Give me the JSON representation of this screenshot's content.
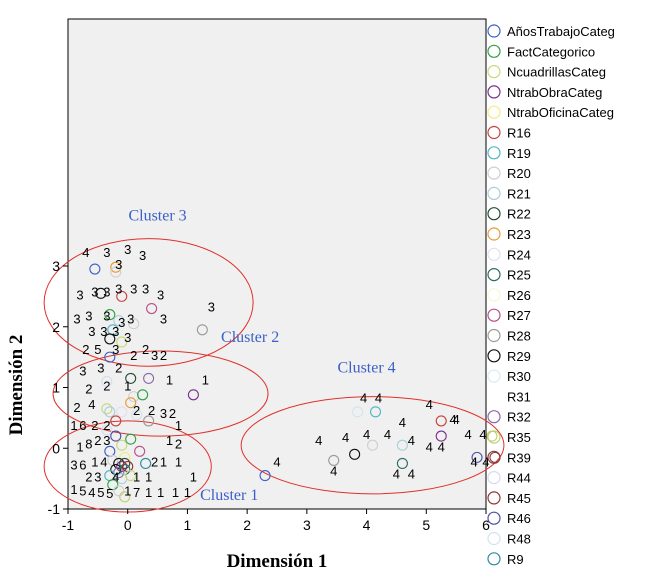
{
  "chart_data": {
    "type": "scatter",
    "xlabel": "Dimensión 1",
    "ylabel": "Dimensión 2",
    "xlim": [
      -1,
      6
    ],
    "ylim": [
      -1,
      3.5
    ],
    "xticks": [
      "-1",
      "0",
      "1",
      "2",
      "3",
      "4",
      "5",
      "6"
    ],
    "yticks": [
      "-1",
      "0",
      "1",
      "2",
      "3"
    ],
    "grid": false,
    "legend_position": "right",
    "legend": [
      {
        "name": "AñosTrabajoCateg",
        "color": "#3b5fc8"
      },
      {
        "name": "FactCategorico",
        "color": "#2ea043"
      },
      {
        "name": "NcuadrillasCateg",
        "color": "#c9d87a"
      },
      {
        "name": "NtrabObraCateg",
        "color": "#7b2f8e"
      },
      {
        "name": "NtrabOficinaCateg",
        "color": "#f1ec7e"
      },
      {
        "name": "R16",
        "color": "#c8413c"
      },
      {
        "name": "R19",
        "color": "#4bb6c4"
      },
      {
        "name": "R20",
        "color": "#cfcfcf"
      },
      {
        "name": "R21",
        "color": "#a9cfd8"
      },
      {
        "name": "R22",
        "color": "#1f4e34"
      },
      {
        "name": "R23",
        "color": "#e69a35"
      },
      {
        "name": "R24",
        "color": "#e3ddf0"
      },
      {
        "name": "R25",
        "color": "#2d6b66"
      },
      {
        "name": "R26",
        "color": "#f3f9d5"
      },
      {
        "name": "R27",
        "color": "#b8508a"
      },
      {
        "name": "R28",
        "color": "#9a9a9a"
      },
      {
        "name": "R29",
        "color": "#111111"
      },
      {
        "name": "R30",
        "color": "#d7ecf0"
      },
      {
        "name": "R31",
        "color": "#ffffff"
      },
      {
        "name": "R32",
        "color": "#8a68a8"
      },
      {
        "name": "R35",
        "color": "#bfcf6a"
      },
      {
        "name": "R39",
        "color": "#8c3a3a"
      },
      {
        "name": "R44",
        "color": "#d2dcef"
      },
      {
        "name": "R45",
        "color": "#983333"
      },
      {
        "name": "R46",
        "color": "#4e4fa8"
      },
      {
        "name": "R48",
        "color": "#d0e4ee"
      },
      {
        "name": "R9",
        "color": "#2e8aa2"
      }
    ],
    "annotations": [
      {
        "text": "Cluster 1",
        "x": 1.7,
        "y": -0.85
      },
      {
        "text": "Cluster 2",
        "x": 2.05,
        "y": 1.75
      },
      {
        "text": "Cluster 3",
        "x": 0.5,
        "y": 3.75
      },
      {
        "text": "Cluster 4",
        "x": 4.0,
        "y": 1.25
      }
    ],
    "clusters": [
      {
        "name": "Cluster 1",
        "cx": 0.0,
        "cy": -0.3,
        "rx": 1.4,
        "ry": 0.75
      },
      {
        "name": "Cluster 2",
        "cx": 0.55,
        "cy": 0.9,
        "rx": 1.8,
        "ry": 0.7
      },
      {
        "name": "Cluster 3",
        "cx": 0.35,
        "cy": 2.4,
        "rx": 1.75,
        "ry": 1.05
      },
      {
        "name": "Cluster 4",
        "cx": 4.1,
        "cy": 0.05,
        "rx": 2.2,
        "ry": 0.8
      }
    ],
    "points": [
      {
        "x": -0.55,
        "y": 2.95,
        "c": "#3b5fc8"
      },
      {
        "x": -0.2,
        "y": 2.98,
        "c": "#e69a35"
      },
      {
        "x": -0.2,
        "y": 2.9,
        "c": "#cfcfcf"
      },
      {
        "x": -0.45,
        "y": 2.55,
        "c": "#111111"
      },
      {
        "x": -0.1,
        "y": 2.5,
        "c": "#c8413c"
      },
      {
        "x": 0.4,
        "y": 2.3,
        "c": "#b8508a"
      },
      {
        "x": -0.3,
        "y": 2.2,
        "c": "#2ea043"
      },
      {
        "x": -0.15,
        "y": 2.1,
        "c": "#a9cfd8"
      },
      {
        "x": 0.1,
        "y": 2.05,
        "c": "#cfcfcf"
      },
      {
        "x": -0.25,
        "y": 1.95,
        "c": "#4bb6c4"
      },
      {
        "x": 1.25,
        "y": 1.95,
        "c": "#9a9a9a"
      },
      {
        "x": -0.3,
        "y": 1.8,
        "c": "#111111"
      },
      {
        "x": -0.1,
        "y": 1.75,
        "c": "#c9d87a"
      },
      {
        "x": -0.3,
        "y": 1.5,
        "c": "#3b5fc8"
      },
      {
        "x": 0.05,
        "y": 1.15,
        "c": "#1f4e34"
      },
      {
        "x": 0.35,
        "y": 1.15,
        "c": "#8a68a8"
      },
      {
        "x": -0.35,
        "y": 1.1,
        "c": "#d2dcef"
      },
      {
        "x": 1.1,
        "y": 0.88,
        "c": "#7b2f8e"
      },
      {
        "x": 0.1,
        "y": 0.85,
        "c": "#cfcfcf"
      },
      {
        "x": 0.25,
        "y": 0.88,
        "c": "#2ea043"
      },
      {
        "x": 0.05,
        "y": 0.75,
        "c": "#e69a35"
      },
      {
        "x": -0.35,
        "y": 0.65,
        "c": "#c9d87a"
      },
      {
        "x": -0.3,
        "y": 0.6,
        "c": "#a9cfd8"
      },
      {
        "x": -0.1,
        "y": 0.6,
        "c": "#e3ddf0"
      },
      {
        "x": 0.35,
        "y": 0.45,
        "c": "#9a9a9a"
      },
      {
        "x": -0.2,
        "y": 0.45,
        "c": "#c8413c"
      },
      {
        "x": 0.15,
        "y": 0.55,
        "c": "#d0e4ee"
      },
      {
        "x": -0.35,
        "y": 0.3,
        "c": "#d2dcef"
      },
      {
        "x": -0.2,
        "y": 0.2,
        "c": "#4e4fa8"
      },
      {
        "x": 0.05,
        "y": 0.15,
        "c": "#2ea043"
      },
      {
        "x": -0.1,
        "y": 0.05,
        "c": "#c9d87a"
      },
      {
        "x": -0.3,
        "y": -0.05,
        "c": "#3b5fc8"
      },
      {
        "x": 0.2,
        "y": -0.05,
        "c": "#b8508a"
      },
      {
        "x": -0.05,
        "y": -0.15,
        "c": "#f1ec7e"
      },
      {
        "x": -0.25,
        "y": -0.2,
        "c": "#cfcfcf"
      },
      {
        "x": -0.15,
        "y": -0.25,
        "c": "#111111"
      },
      {
        "x": -0.1,
        "y": -0.3,
        "c": "#7b2f8e"
      },
      {
        "x": -0.05,
        "y": -0.25,
        "c": "#1f4e34"
      },
      {
        "x": 0.3,
        "y": -0.25,
        "c": "#2e8aa2"
      },
      {
        "x": -0.2,
        "y": -0.35,
        "c": "#111111"
      },
      {
        "x": -0.15,
        "y": -0.4,
        "c": "#8a68a8"
      },
      {
        "x": -0.05,
        "y": -0.35,
        "c": "#2d6b66"
      },
      {
        "x": 0.0,
        "y": -0.3,
        "c": "#983333"
      },
      {
        "x": -0.3,
        "y": -0.45,
        "c": "#4bb6c4"
      },
      {
        "x": -0.1,
        "y": -0.5,
        "c": "#a9cfd8"
      },
      {
        "x": 0.05,
        "y": -0.45,
        "c": "#c9d87a"
      },
      {
        "x": -0.25,
        "y": -0.6,
        "c": "#2ea043"
      },
      {
        "x": -0.15,
        "y": -0.7,
        "c": "#cfcfcf"
      },
      {
        "x": -0.05,
        "y": -0.8,
        "c": "#bfcf6a"
      },
      {
        "x": 3.85,
        "y": 0.6,
        "c": "#d0e4ee"
      },
      {
        "x": 4.15,
        "y": 0.6,
        "c": "#4bb6c4"
      },
      {
        "x": 5.25,
        "y": 0.45,
        "c": "#c8413c"
      },
      {
        "x": 5.25,
        "y": 0.2,
        "c": "#7b2f8e"
      },
      {
        "x": 6.1,
        "y": 0.2,
        "c": "#bfcf6a"
      },
      {
        "x": 4.1,
        "y": 0.05,
        "c": "#cfcfcf"
      },
      {
        "x": 4.6,
        "y": 0.05,
        "c": "#a9cfd8"
      },
      {
        "x": 3.8,
        "y": -0.1,
        "c": "#111111"
      },
      {
        "x": 3.45,
        "y": -0.2,
        "c": "#9a9a9a"
      },
      {
        "x": 4.6,
        "y": -0.25,
        "c": "#2d6b66"
      },
      {
        "x": 5.85,
        "y": -0.15,
        "c": "#4e4fa8"
      },
      {
        "x": 6.15,
        "y": -0.15,
        "c": "#8c3a3a"
      },
      {
        "x": 2.3,
        "y": -0.45,
        "c": "#3b5fc8"
      }
    ],
    "text_labels": [
      {
        "t": "4",
        "x": -0.7,
        "y": 3.15
      },
      {
        "t": "3",
        "x": -0.35,
        "y": 3.15
      },
      {
        "t": "3",
        "x": 0.0,
        "y": 3.2
      },
      {
        "t": "3",
        "x": 0.25,
        "y": 3.1
      },
      {
        "t": "3",
        "x": -0.15,
        "y": 2.95
      },
      {
        "t": "3",
        "x": -0.8,
        "y": 2.45
      },
      {
        "t": "3",
        "x": -0.55,
        "y": 2.5
      },
      {
        "t": "3",
        "x": -0.35,
        "y": 2.5
      },
      {
        "t": "3",
        "x": -0.15,
        "y": 2.55
      },
      {
        "t": "3",
        "x": 0.1,
        "y": 2.55
      },
      {
        "t": "3",
        "x": 0.3,
        "y": 2.55
      },
      {
        "t": "3",
        "x": 0.55,
        "y": 2.45
      },
      {
        "t": "3",
        "x": -0.85,
        "y": 2.05
      },
      {
        "t": "3",
        "x": -0.65,
        "y": 2.1
      },
      {
        "t": "3",
        "x": -0.35,
        "y": 2.1
      },
      {
        "t": "3",
        "x": -0.1,
        "y": 2.0
      },
      {
        "t": "3",
        "x": 0.05,
        "y": 2.05
      },
      {
        "t": "3",
        "x": 0.6,
        "y": 2.05
      },
      {
        "t": "3",
        "x": 1.4,
        "y": 2.25
      },
      {
        "t": "3",
        "x": -0.6,
        "y": 1.85
      },
      {
        "t": "3",
        "x": -0.4,
        "y": 1.85
      },
      {
        "t": "3",
        "x": -0.2,
        "y": 1.85
      },
      {
        "t": "3",
        "x": 0.0,
        "y": 1.75
      },
      {
        "t": "2",
        "x": -0.7,
        "y": 1.55
      },
      {
        "t": "5",
        "x": -0.5,
        "y": 1.55
      },
      {
        "t": "3",
        "x": -0.2,
        "y": 1.55
      },
      {
        "t": "2",
        "x": 0.1,
        "y": 1.45
      },
      {
        "t": "2",
        "x": 0.3,
        "y": 1.55
      },
      {
        "t": "3",
        "x": 0.45,
        "y": 1.45
      },
      {
        "t": "2",
        "x": 0.6,
        "y": 1.45
      },
      {
        "t": "3",
        "x": -0.75,
        "y": 1.2
      },
      {
        "t": "3",
        "x": -0.45,
        "y": 1.25
      },
      {
        "t": "2",
        "x": -0.15,
        "y": 1.25
      },
      {
        "t": "1",
        "x": 0.7,
        "y": 1.05
      },
      {
        "t": "1",
        "x": 1.3,
        "y": 1.05
      },
      {
        "t": "2",
        "x": -0.65,
        "y": 0.9
      },
      {
        "t": "2",
        "x": -0.35,
        "y": 0.95
      },
      {
        "t": "1",
        "x": 0.0,
        "y": 0.95
      },
      {
        "t": "2",
        "x": -0.85,
        "y": 0.6
      },
      {
        "t": "4",
        "x": -0.6,
        "y": 0.65
      },
      {
        "t": "2",
        "x": 0.15,
        "y": 0.55
      },
      {
        "t": "2",
        "x": 0.4,
        "y": 0.55
      },
      {
        "t": "3",
        "x": 0.6,
        "y": 0.5
      },
      {
        "t": "2",
        "x": 0.75,
        "y": 0.5
      },
      {
        "t": "1",
        "x": -0.9,
        "y": 0.3
      },
      {
        "t": "6",
        "x": -0.75,
        "y": 0.3
      },
      {
        "t": "2",
        "x": -0.55,
        "y": 0.3
      },
      {
        "t": "2",
        "x": -0.35,
        "y": 0.3
      },
      {
        "t": "1",
        "x": 0.85,
        "y": 0.3
      },
      {
        "t": "1",
        "x": -0.8,
        "y": -0.05
      },
      {
        "t": "8",
        "x": -0.65,
        "y": 0.0
      },
      {
        "t": "2",
        "x": -0.5,
        "y": 0.05
      },
      {
        "t": "3",
        "x": -0.35,
        "y": 0.05
      },
      {
        "t": "1",
        "x": 0.7,
        "y": 0.05
      },
      {
        "t": "2",
        "x": 0.85,
        "y": 0.0
      },
      {
        "t": "3",
        "x": -0.9,
        "y": -0.35
      },
      {
        "t": "6",
        "x": -0.75,
        "y": -0.35
      },
      {
        "t": "1",
        "x": -0.55,
        "y": -0.3
      },
      {
        "t": "4",
        "x": -0.4,
        "y": -0.3
      },
      {
        "t": "2",
        "x": 0.45,
        "y": -0.3
      },
      {
        "t": "1",
        "x": 0.6,
        "y": -0.3
      },
      {
        "t": "1",
        "x": 0.85,
        "y": -0.3
      },
      {
        "t": "2",
        "x": -0.65,
        "y": -0.55
      },
      {
        "t": "3",
        "x": -0.5,
        "y": -0.55
      },
      {
        "t": "4",
        "x": -0.2,
        "y": -0.55
      },
      {
        "t": "1",
        "x": 0.15,
        "y": -0.55
      },
      {
        "t": "1",
        "x": 0.35,
        "y": -0.55
      },
      {
        "t": "1",
        "x": 1.1,
        "y": -0.55
      },
      {
        "t": "1",
        "x": -0.9,
        "y": -0.75
      },
      {
        "t": "5",
        "x": -0.75,
        "y": -0.78
      },
      {
        "t": "4",
        "x": -0.6,
        "y": -0.8
      },
      {
        "t": "5",
        "x": -0.45,
        "y": -0.8
      },
      {
        "t": "5",
        "x": -0.3,
        "y": -0.82
      },
      {
        "t": "1",
        "x": 0.0,
        "y": -0.78
      },
      {
        "t": "7",
        "x": 0.15,
        "y": -0.8
      },
      {
        "t": "1",
        "x": 0.35,
        "y": -0.8
      },
      {
        "t": "1",
        "x": 0.55,
        "y": -0.8
      },
      {
        "t": "1",
        "x": 0.8,
        "y": -0.8
      },
      {
        "t": "1",
        "x": 1.0,
        "y": -0.8
      },
      {
        "t": "4",
        "x": 2.5,
        "y": -0.3
      },
      {
        "t": "4",
        "x": 3.2,
        "y": 0.05
      },
      {
        "t": "4",
        "x": 3.45,
        "y": -0.45
      },
      {
        "t": "4",
        "x": 3.65,
        "y": 0.1
      },
      {
        "t": "4",
        "x": 4.0,
        "y": 0.15
      },
      {
        "t": "4",
        "x": 4.35,
        "y": 0.15
      },
      {
        "t": "4",
        "x": 4.6,
        "y": 0.35
      },
      {
        "t": "4",
        "x": 4.75,
        "y": 0.05
      },
      {
        "t": "4",
        "x": 3.95,
        "y": 0.75
      },
      {
        "t": "4",
        "x": 4.2,
        "y": 0.75
      },
      {
        "t": "4",
        "x": 4.5,
        "y": -0.5
      },
      {
        "t": "4",
        "x": 4.75,
        "y": -0.5
      },
      {
        "t": "4",
        "x": 5.05,
        "y": 0.65
      },
      {
        "t": "4",
        "x": 5.45,
        "y": 0.4
      },
      {
        "t": "4",
        "x": 5.5,
        "y": 0.4
      },
      {
        "t": "4",
        "x": 5.05,
        "y": -0.05
      },
      {
        "t": "4",
        "x": 5.25,
        "y": -0.05
      },
      {
        "t": "4",
        "x": 5.7,
        "y": 0.15
      },
      {
        "t": "4",
        "x": 5.95,
        "y": 0.15
      },
      {
        "t": "4",
        "x": 5.8,
        "y": -0.3
      },
      {
        "t": "4",
        "x": 6.0,
        "y": -0.3
      }
    ]
  }
}
